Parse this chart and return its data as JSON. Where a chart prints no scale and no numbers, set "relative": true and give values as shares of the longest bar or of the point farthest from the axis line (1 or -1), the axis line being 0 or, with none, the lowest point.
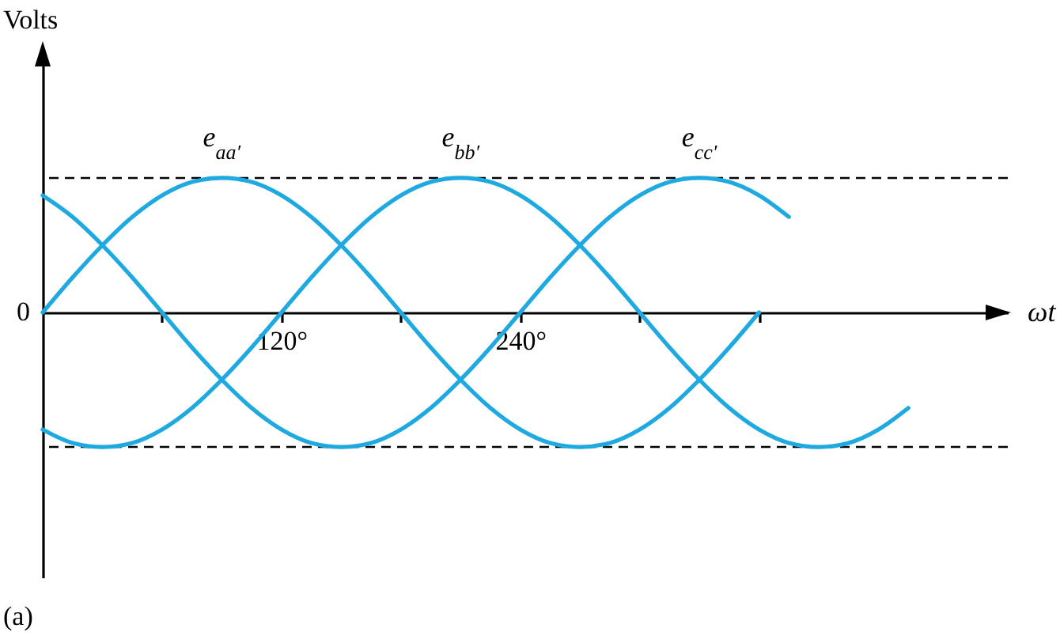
{
  "chart_data": {
    "type": "line",
    "relative": true,
    "xlabel": "ωt",
    "xlim": [
      0,
      485
    ],
    "xticks": [
      {
        "value": 60,
        "label": null
      },
      {
        "value": 120,
        "label": "120°"
      },
      {
        "value": 180,
        "label": null
      },
      {
        "value": 240,
        "label": "240°"
      },
      {
        "value": 300,
        "label": null
      },
      {
        "value": 360,
        "label": null
      }
    ],
    "legend": false,
    "line_style": "solid",
    "series": [
      {
        "name": "e$_{aa′}$",
        "color": "#1fa9e1",
        "x": [
          0,
          15,
          30,
          45,
          60,
          75,
          90,
          105,
          120,
          135,
          150,
          165,
          180,
          195,
          210,
          225,
          240,
          255,
          270,
          285,
          300,
          315,
          330,
          345,
          360
        ],
        "values": [
          0,
          0.26,
          0.5,
          0.71,
          0.87,
          0.97,
          1,
          0.97,
          0.87,
          0.71,
          0.5,
          0.26,
          0,
          -0.26,
          -0.5,
          -0.71,
          -0.87,
          -0.97,
          -1,
          -0.97,
          -0.87,
          -0.71,
          -0.5,
          -0.26,
          0
        ]
      },
      {
        "name": "e$_{bb′}$",
        "color": "#1fa9e1",
        "x": [
          0,
          15,
          30,
          45,
          60,
          75,
          90,
          105,
          120,
          135,
          150,
          165,
          180,
          195,
          210,
          225,
          240,
          255,
          270,
          285,
          300,
          315,
          330,
          345,
          360,
          375,
          390,
          405,
          420,
          435
        ],
        "values": [
          -0.87,
          -0.97,
          -1,
          -0.97,
          -0.87,
          -0.71,
          -0.5,
          -0.26,
          0,
          0.26,
          0.5,
          0.71,
          0.87,
          0.97,
          1,
          0.97,
          0.87,
          0.71,
          0.5,
          0.26,
          0,
          -0.26,
          -0.5,
          -0.71,
          -0.87,
          -0.97,
          -1,
          -0.97,
          -0.87,
          -0.71
        ]
      },
      {
        "name": "e$_{cc′}$",
        "color": "#1fa9e1",
        "x": [
          0,
          15,
          30,
          45,
          60,
          75,
          90,
          105,
          120,
          135,
          150,
          165,
          180,
          195,
          210,
          225,
          240,
          255,
          270,
          285,
          300,
          315,
          330,
          345,
          360,
          375
        ],
        "values": [
          0.87,
          0.71,
          0.5,
          0.26,
          0,
          -0.26,
          -0.5,
          -0.71,
          -0.87,
          -0.97,
          -1,
          -0.97,
          -0.87,
          -0.71,
          -0.5,
          -0.26,
          0,
          0.26,
          0.5,
          0.71,
          0.87,
          0.97,
          1,
          0.97,
          0.87,
          0.71
        ]
      }
    ],
    "ref_lines": [
      {
        "axis": "y",
        "value": 1,
        "color": "#000000",
        "line_style": "dashed"
      },
      {
        "axis": "y",
        "value": -1,
        "color": "#000000",
        "line_style": "dashed"
      }
    ],
    "annotations": [
      {
        "text": "0",
        "x": 0,
        "y": 0
      },
      "Volts",
      "(a)"
    ]
  }
}
